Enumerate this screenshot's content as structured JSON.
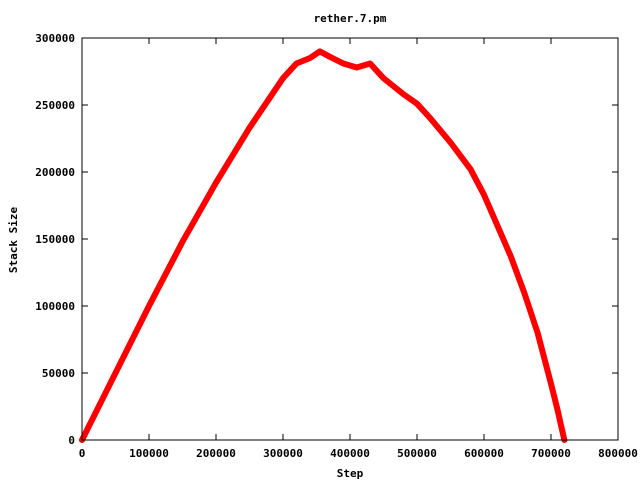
{
  "chart_data": {
    "type": "line",
    "title": "rether.7.pm",
    "xlabel": "Step",
    "ylabel": "Stack Size",
    "xlim": [
      0,
      800000
    ],
    "ylim": [
      0,
      300000
    ],
    "x_ticks": [
      0,
      100000,
      200000,
      300000,
      400000,
      500000,
      600000,
      700000,
      800000
    ],
    "x_tick_labels": [
      "0",
      "100000",
      "200000",
      "300000",
      "400000",
      "500000",
      "600000",
      "700000",
      "800000"
    ],
    "y_ticks": [
      0,
      50000,
      100000,
      150000,
      200000,
      250000,
      300000
    ],
    "y_tick_labels": [
      "0",
      "50000",
      "100000",
      "150000",
      "200000",
      "250000",
      "300000"
    ],
    "grid": false,
    "legend": "none",
    "series": [
      {
        "color": "#ff0000",
        "x": [
          0,
          50000,
          100000,
          150000,
          200000,
          250000,
          300000,
          320000,
          340000,
          355000,
          370000,
          390000,
          410000,
          430000,
          450000,
          480000,
          500000,
          520000,
          550000,
          580000,
          600000,
          620000,
          640000,
          660000,
          680000,
          700000,
          710000,
          715000,
          720000
        ],
        "y": [
          0,
          50000,
          100000,
          148000,
          192000,
          233000,
          270000,
          281000,
          285000,
          290000,
          286000,
          281000,
          278000,
          281000,
          270000,
          258000,
          251000,
          240000,
          222000,
          202000,
          183000,
          160000,
          137000,
          110000,
          80000,
          42000,
          22000,
          11000,
          0
        ]
      }
    ]
  }
}
